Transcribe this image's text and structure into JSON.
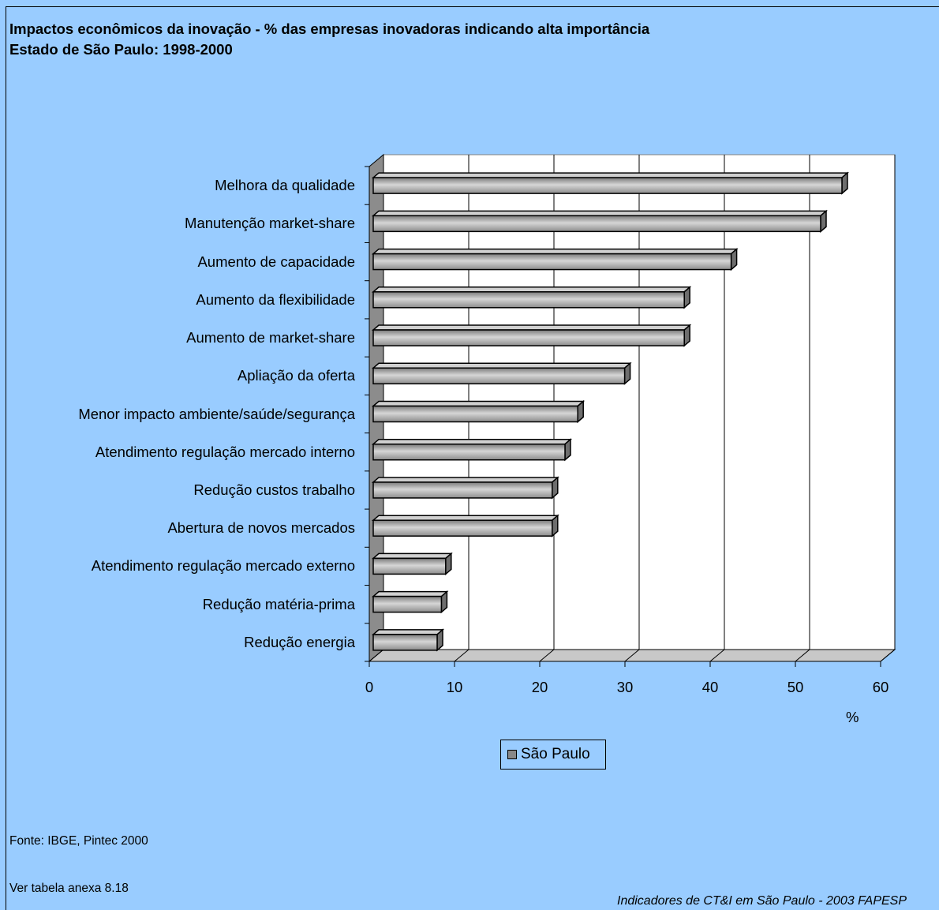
{
  "title_line1": "Impactos econômicos da inovação - % das empresas inovadoras  indicando alta importância",
  "title_line2": "Estado de São Paulo: 1998-2000",
  "legend_label": "São Paulo",
  "source": "Fonte: IBGE, Pintec 2000",
  "note": "Ver tabela anexa 8.18",
  "credit": "Indicadores de CT&I em São Paulo - 2003 FAPESP",
  "colors": {
    "background": "#99ccff",
    "plot": "#ffffff",
    "bar": "#a6a6a6",
    "axis": "#000000"
  },
  "chart_data": {
    "type": "bar",
    "orientation": "horizontal",
    "categories": [
      "Melhora da qualidade",
      "Manutenção market-share",
      "Aumento de capacidade",
      "Aumento da flexibilidade",
      "Aumento de market-share",
      "Apliação da oferta",
      "Menor impacto ambiente/saúde/segurança",
      "Atendimento regulação mercado interno",
      "Redução custos trabalho",
      "Abertura de novos mercados",
      "Atendimento regulação mercado externo",
      "Redução matéria-prima",
      "Redução energia"
    ],
    "series": [
      {
        "name": "São Paulo",
        "values": [
          55,
          52.5,
          42,
          36.5,
          36.5,
          29.5,
          24,
          22.5,
          21,
          21,
          8.5,
          8,
          7.5
        ]
      }
    ],
    "xlabel": "%",
    "xlim": [
      0,
      60
    ],
    "xticks": [
      "0",
      "10",
      "20",
      "30",
      "40",
      "50",
      "60"
    ],
    "grid": true,
    "legend_position": "bottom"
  }
}
